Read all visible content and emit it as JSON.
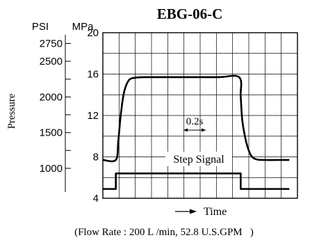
{
  "chart_data": {
    "type": "line",
    "title": "EBG-06-C",
    "ylabel": "Pressure",
    "xlabel": "Time",
    "y_unit_left": "PSI",
    "y_unit_right": "MPa",
    "ylim": [
      4,
      20
    ],
    "mpa_ticks": [
      "4",
      "8",
      "12",
      "16",
      "20"
    ],
    "psi_ticks": [
      {
        "label": "1000",
        "mpa": 6.89
      },
      {
        "label": "1500",
        "mpa": 10.34
      },
      {
        "label": "2000",
        "mpa": 13.79
      },
      {
        "label": "2500",
        "mpa": 17.24
      },
      {
        "label": "2750",
        "mpa": 18.96
      }
    ],
    "psi_minor_ticks_mpa": [
      8.62,
      12.07,
      15.51
    ],
    "interval_annotation": "0.2s",
    "step_label": "Step Signal",
    "flow_note": "(Flow Rate : 200 L /min, 52.8 U.S.GPM   )",
    "grid": true,
    "grid_columns": 12,
    "series": [
      {
        "role": "pressure-response",
        "x": [
          0,
          0.8,
          0.95,
          1.1,
          1.3,
          1.6,
          2.0,
          2.5,
          3.0,
          4.0,
          7.0,
          8.4,
          8.5,
          8.6,
          8.8,
          9.0,
          9.2,
          9.5,
          10.0,
          11.0,
          11.5
        ],
        "y": [
          7.7,
          7.7,
          9.5,
          12.0,
          14.2,
          15.4,
          15.65,
          15.7,
          15.7,
          15.7,
          15.7,
          15.7,
          13.8,
          11.5,
          9.7,
          8.6,
          8.0,
          7.75,
          7.7,
          7.7,
          7.7
        ]
      },
      {
        "role": "step-signal",
        "x": [
          0,
          0.8,
          0.8,
          8.5,
          8.5,
          11.5
        ],
        "y": [
          4.9,
          4.9,
          6.4,
          6.4,
          4.9,
          4.9
        ]
      }
    ]
  }
}
